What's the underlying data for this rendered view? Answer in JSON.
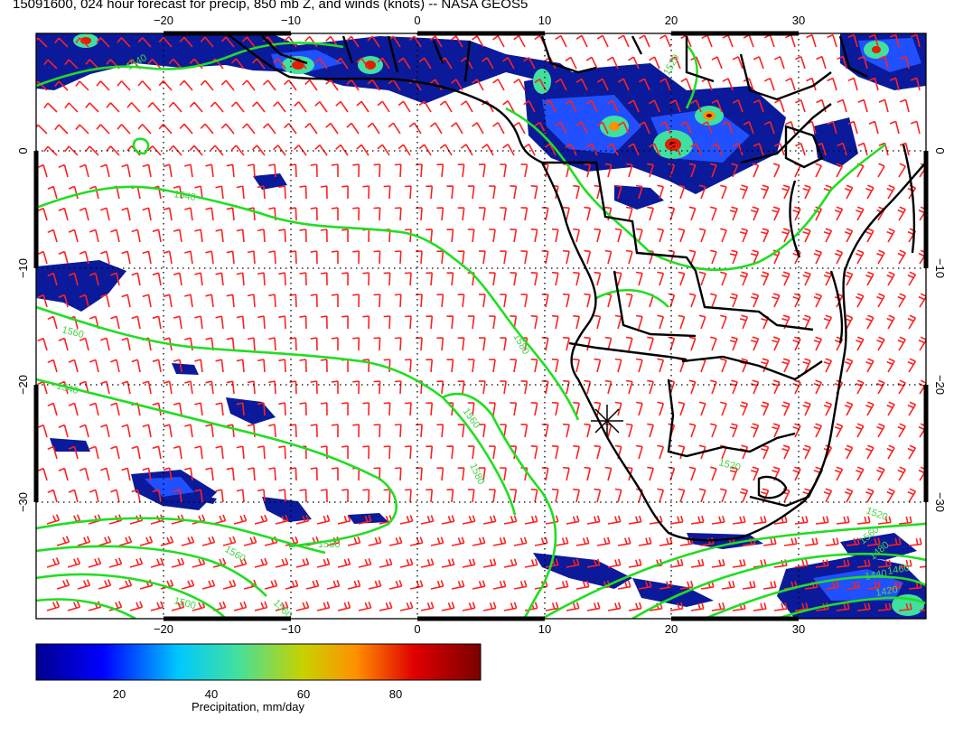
{
  "title": "15091600, 024 hour forecast for precip, 850 mb Z, and winds (knots) -- NASA GEOS5",
  "map": {
    "lon_range": [
      -30,
      40
    ],
    "lat_range": [
      -40,
      10
    ],
    "x_ticks": [
      -20,
      -10,
      0,
      10,
      20,
      30
    ],
    "x_tick_labels": [
      "−20",
      "−10",
      "0",
      "10",
      "20",
      "30"
    ],
    "y_ticks": [
      0,
      -10,
      -20,
      -30
    ],
    "y_tick_labels": [
      "0",
      "−10",
      "−20",
      "−30"
    ],
    "gridlines": "dotted",
    "marker": {
      "symbol": "asterisk",
      "lon": 15,
      "lat": -24
    },
    "contour_labels": [
      "1540",
      "1520",
      "1540",
      "1560",
      "1580",
      "1540",
      "1560",
      "1580",
      "1560",
      "1580",
      "1560",
      "1500",
      "1520",
      "1520",
      "1560",
      "1480",
      "1460",
      "1440",
      "1420"
    ],
    "colors": {
      "contours": "#22dd22",
      "wind_barbs": "#ff2020",
      "coastlines": "#000000",
      "precip_low": "#00008f",
      "precip_high": "#7a0000"
    }
  },
  "colorbar": {
    "title": "Precipitation, mm/day",
    "range": [
      0,
      100
    ],
    "ticks": [
      20,
      40,
      60,
      80
    ],
    "tick_labels": [
      "20",
      "40",
      "60",
      "80"
    ]
  }
}
